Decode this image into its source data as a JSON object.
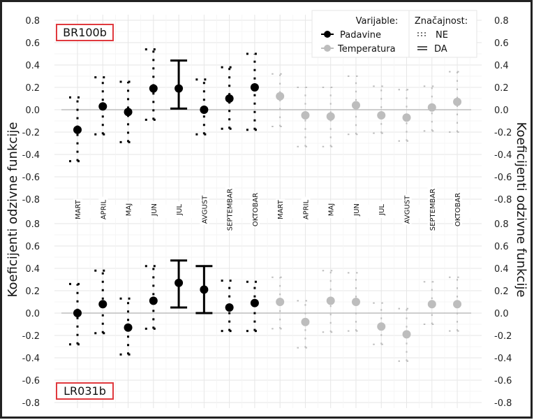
{
  "colors": {
    "padavine": "#000000",
    "temperatura": "#bdbdbd",
    "label_border": "#e0393e",
    "grid": "#ebebeb",
    "zero": "#bdbdbd"
  },
  "legend": {
    "variable_title": "Varijable:",
    "variables": [
      "Padavine",
      "Temperatura"
    ],
    "significance_title": "Značajnost:",
    "significance": [
      "NE",
      "DA"
    ]
  },
  "chart_data": {
    "type": "scatter",
    "subtype": "point-range error bars",
    "ylabel_left": "Koeficijenti odzivne funkcije",
    "ylabel_right": "Koeficijenti odzivne funkcije",
    "ylim": [
      -0.8,
      0.8
    ],
    "yticks": [
      "0.8",
      "0.6",
      "0.4",
      "0.2",
      "0.0",
      "-0.2",
      "-0.4",
      "-0.6",
      "-0.8"
    ],
    "ytick_values": [
      0.8,
      0.6,
      0.4,
      0.2,
      0.0,
      -0.2,
      -0.4,
      -0.6,
      -0.8
    ],
    "grid": true,
    "legend_position": "top-right",
    "categories": [
      "MART",
      "APRIL",
      "MAJ",
      "JUN",
      "JUL",
      "AVGUST",
      "SEPTEMBAR",
      "OKTOBAR",
      "MART",
      "APRIL",
      "MAJ",
      "JUN",
      "JUL",
      "AVGUST",
      "SEPTEMBAR",
      "OKTOBAR"
    ],
    "panels": [
      {
        "label": "BR100b",
        "series": [
          {
            "name": "Padavine",
            "values": [
              -0.18,
              0.03,
              -0.02,
              0.19,
              0.19,
              0.0,
              0.1,
              0.2
            ],
            "low": [
              -0.46,
              -0.22,
              -0.29,
              -0.09,
              0.01,
              -0.22,
              -0.17,
              -0.18
            ],
            "high": [
              0.11,
              0.29,
              0.25,
              0.54,
              0.44,
              0.27,
              0.38,
              0.5
            ],
            "significant": [
              false,
              false,
              false,
              false,
              true,
              false,
              false,
              false
            ]
          },
          {
            "name": "Temperatura",
            "values": [
              0.12,
              -0.05,
              -0.06,
              0.04,
              -0.05,
              -0.07,
              0.02,
              0.07
            ],
            "low": [
              -0.15,
              -0.33,
              -0.33,
              -0.22,
              -0.21,
              -0.28,
              -0.19,
              -0.2
            ],
            "high": [
              0.32,
              0.2,
              0.2,
              0.3,
              0.21,
              0.18,
              0.21,
              0.34
            ],
            "significant": [
              false,
              false,
              false,
              false,
              false,
              false,
              false,
              false
            ]
          }
        ]
      },
      {
        "label": "LR031b",
        "series": [
          {
            "name": "Padavine",
            "values": [
              0.0,
              0.08,
              -0.13,
              0.11,
              0.27,
              0.21,
              0.05,
              0.09
            ],
            "low": [
              -0.28,
              -0.18,
              -0.37,
              -0.14,
              0.05,
              0.0,
              -0.16,
              -0.16
            ],
            "high": [
              0.26,
              0.38,
              0.13,
              0.42,
              0.47,
              0.42,
              0.29,
              0.28
            ],
            "significant": [
              false,
              false,
              false,
              false,
              true,
              true,
              false,
              false
            ]
          },
          {
            "name": "Temperatura",
            "values": [
              0.1,
              -0.08,
              0.11,
              0.1,
              -0.12,
              -0.19,
              0.08,
              0.08
            ],
            "low": [
              -0.14,
              -0.31,
              -0.17,
              -0.16,
              -0.28,
              -0.43,
              -0.1,
              -0.16
            ],
            "high": [
              0.32,
              0.11,
              0.38,
              0.36,
              0.09,
              0.04,
              0.28,
              0.32
            ],
            "significant": [
              false,
              false,
              false,
              false,
              false,
              false,
              false,
              false
            ]
          }
        ]
      }
    ]
  }
}
